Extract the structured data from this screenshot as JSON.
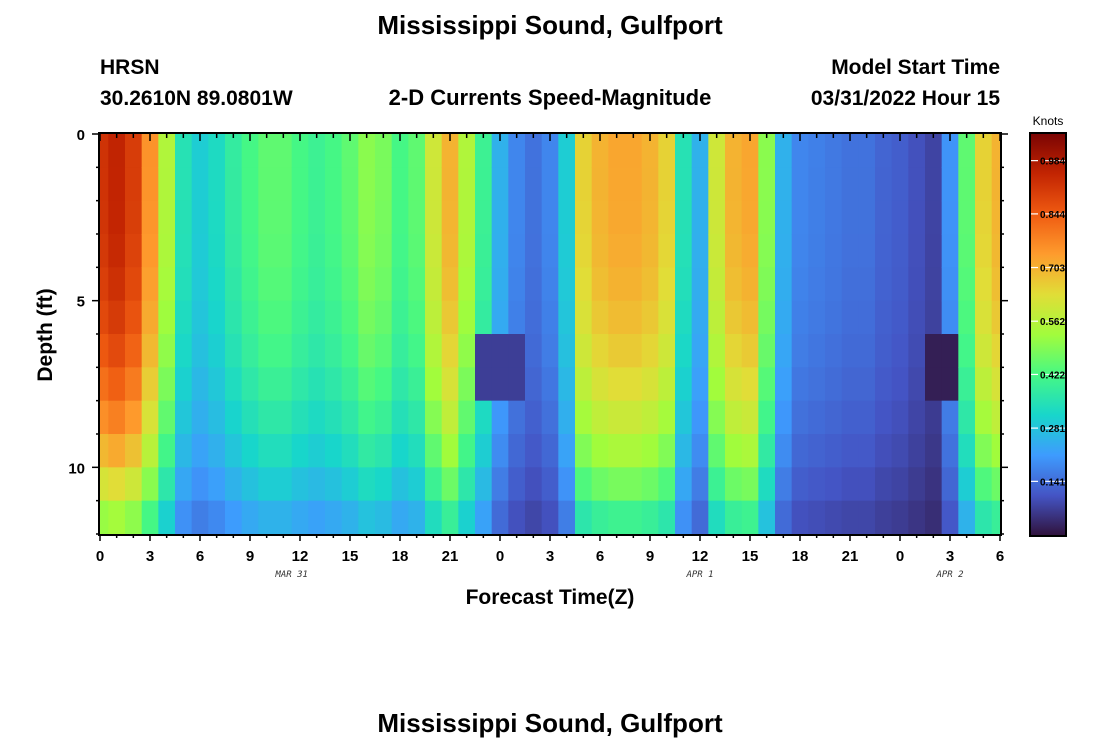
{
  "page": {
    "title_top": "Mississippi Sound, Gulfport",
    "title_bottom": "Mississippi Sound, Gulfport",
    "model": "HRSN",
    "coords": "30.2610N  89.0801W",
    "subtitle": "2-D Currents Speed-Magnitude",
    "start_label": "Model Start Time",
    "start_value": "03/31/2022 Hour 15"
  },
  "chart_data": {
    "type": "heatmap",
    "xlabel": "Forecast Time(Z)",
    "ylabel": "Depth (ft)",
    "x_tick_labels": [
      "0",
      "3",
      "6",
      "9",
      "12",
      "15",
      "18",
      "21",
      "0",
      "3",
      "6",
      "9",
      "12",
      "15",
      "18",
      "21",
      "0",
      "3",
      "6"
    ],
    "x_tick_hours": [
      0,
      3,
      6,
      9,
      12,
      15,
      18,
      21,
      24,
      27,
      30,
      33,
      36,
      39,
      42,
      45,
      48,
      51,
      54
    ],
    "x_range_hours": [
      0,
      54
    ],
    "date_labels": [
      {
        "text": "MAR 31",
        "hour": 11.5
      },
      {
        "text": "APR 1",
        "hour": 36
      },
      {
        "text": "APR 2",
        "hour": 51
      }
    ],
    "y_tick_labels": [
      "0",
      "5",
      "10"
    ],
    "y_tick_values": [
      0,
      5,
      10
    ],
    "y_range_ft": [
      0,
      12
    ],
    "y_reversed": true,
    "colorbar": {
      "unit": "Knots",
      "range": [
        0,
        1.054
      ],
      "tick_labels": [
        "0.984",
        "0.844",
        "0.703",
        "0.562",
        "0.422",
        "0.281",
        "0.141"
      ],
      "tick_values": [
        0.984,
        0.844,
        0.703,
        0.562,
        0.422,
        0.281,
        0.141
      ],
      "colormap": "turbo"
    },
    "grid": {
      "hours": [
        0,
        1,
        2,
        3,
        4,
        5,
        6,
        7,
        8,
        9,
        10,
        11,
        12,
        13,
        14,
        15,
        16,
        17,
        18,
        19,
        20,
        21,
        22,
        23,
        24,
        25,
        26,
        27,
        28,
        29,
        30,
        31,
        32,
        33,
        34,
        35,
        36,
        37,
        38,
        39,
        40,
        41,
        42,
        43,
        44,
        45,
        46,
        47,
        48,
        49,
        50,
        51,
        52,
        53,
        54
      ],
      "depth_rows_ft": [
        0.5,
        1.5,
        2.5,
        3.5,
        4.5,
        5.5,
        6.5,
        7.5,
        8.5,
        9.5,
        10.5,
        11.5
      ],
      "surface_speed_knots": [
        0.92,
        0.95,
        0.9,
        0.75,
        0.55,
        0.35,
        0.3,
        0.33,
        0.38,
        0.42,
        0.45,
        0.45,
        0.42,
        0.4,
        0.42,
        0.45,
        0.5,
        0.48,
        0.42,
        0.45,
        0.6,
        0.7,
        0.55,
        0.4,
        0.25,
        0.18,
        0.15,
        0.18,
        0.3,
        0.65,
        0.7,
        0.72,
        0.72,
        0.7,
        0.65,
        0.35,
        0.25,
        0.6,
        0.7,
        0.72,
        0.5,
        0.25,
        0.18,
        0.17,
        0.16,
        0.15,
        0.15,
        0.13,
        0.12,
        0.1,
        0.08,
        0.2,
        0.45,
        0.65,
        0.7
      ],
      "profile_exponent": 0.5,
      "low_spots": [
        {
          "hour": 24,
          "depth_ft": 7,
          "speed_knots": 0.05
        },
        {
          "hour": 50.5,
          "depth_ft": 7,
          "speed_knots": 0.0
        }
      ]
    }
  }
}
